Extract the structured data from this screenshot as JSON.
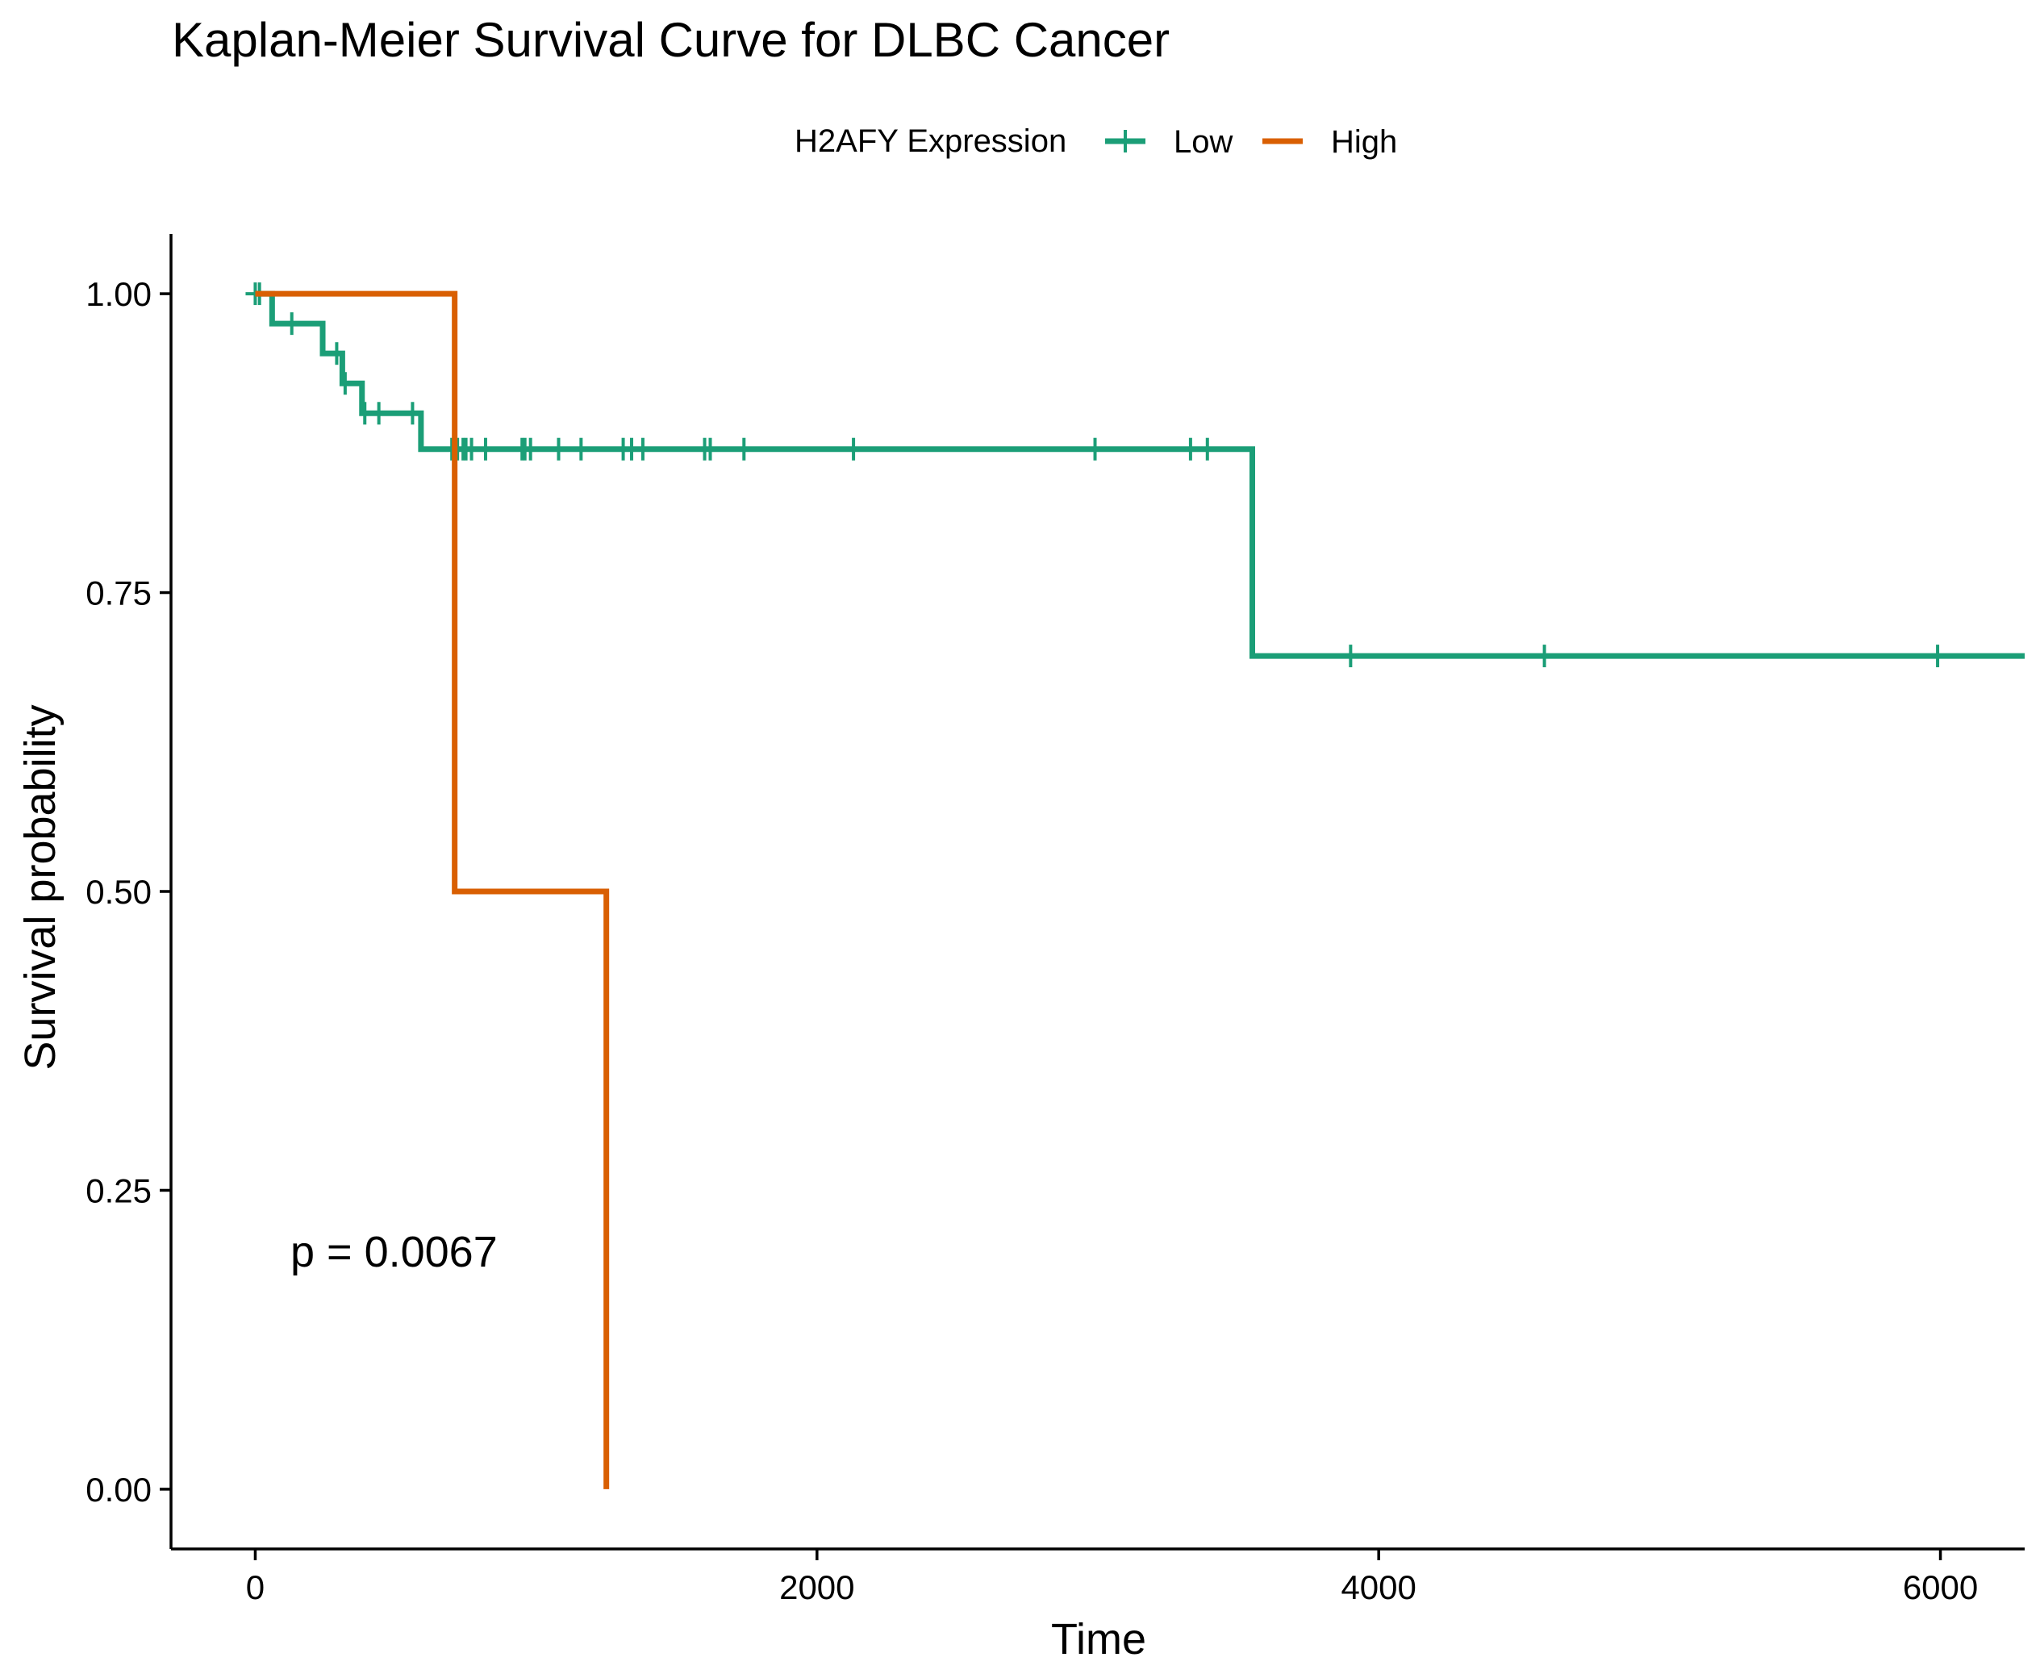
{
  "chart_data": {
    "type": "line",
    "title": "Kaplan-Meier Survival Curve for DLBC Cancer",
    "xlabel": "Time",
    "ylabel": "Survival probability",
    "xlim": [
      -300,
      6300
    ],
    "ylim": [
      -0.05,
      1.05
    ],
    "x_ticks": [
      0,
      2000,
      4000,
      6000
    ],
    "y_ticks": [
      0,
      0.25,
      0.5,
      0.75,
      1.0
    ],
    "x_tick_labels": [
      "0",
      "2000",
      "4000",
      "6000"
    ],
    "y_tick_labels": [
      "0.00",
      "0.25",
      "0.50",
      "0.75",
      "1.00"
    ],
    "grid": false,
    "legend": {
      "title": "H2AFY Expression",
      "placement": "top",
      "entries": [
        "Low",
        "High"
      ]
    },
    "annotation": "p = 0.0067",
    "series": [
      {
        "name": "Low",
        "color": "#1b9e77",
        "steps": [
          [
            0,
            1.0
          ],
          [
            60,
            0.975
          ],
          [
            240,
            0.95
          ],
          [
            310,
            0.925
          ],
          [
            380,
            0.9
          ],
          [
            590,
            0.87
          ],
          [
            3550,
            0.697
          ],
          [
            6300,
            0.697
          ]
        ],
        "censor_times": [
          0,
          15,
          130,
          290,
          320,
          390,
          440,
          560,
          700,
          720,
          740,
          750,
          770,
          820,
          950,
          960,
          980,
          1080,
          1160,
          1310,
          1340,
          1380,
          1600,
          1620,
          1740,
          2130,
          2990,
          3330,
          3390,
          3900,
          4590,
          5990
        ]
      },
      {
        "name": "High",
        "color": "#d95f02",
        "steps": [
          [
            0,
            1.0
          ],
          [
            710,
            0.5
          ],
          [
            1250,
            0.0
          ]
        ],
        "censor_times": []
      }
    ]
  }
}
